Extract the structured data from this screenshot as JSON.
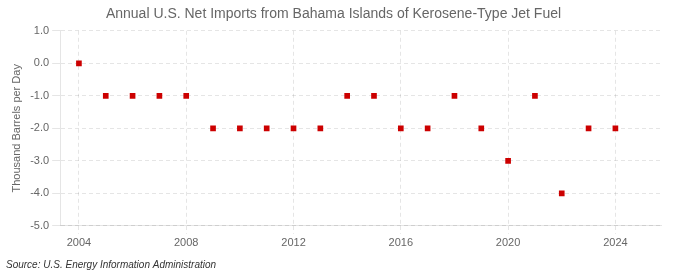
{
  "chart_data": {
    "type": "scatter",
    "title": "Annual U.S. Net Imports from Bahama Islands of Kerosene-Type Jet Fuel",
    "y_label": "Thousand Barrels per Day",
    "annotations": [
      "Source: U.S. Energy Information Administration"
    ],
    "x": [
      2004,
      2005,
      2006,
      2007,
      2008,
      2009,
      2010,
      2011,
      2012,
      2013,
      2014,
      2015,
      2016,
      2017,
      2018,
      2019,
      2020,
      2021,
      2022,
      2023,
      2024
    ],
    "values": [
      0,
      -1,
      -1,
      -1,
      -1,
      -2,
      -2,
      -2,
      -2,
      -2,
      -1,
      -1,
      -2,
      -2,
      -1,
      -2,
      -3,
      -1,
      -4,
      -2,
      -2
    ],
    "color": "#cc0000",
    "marker": "square",
    "xlim": [
      2003.3,
      2025.7
    ],
    "xticks": [
      2004,
      2008,
      2012,
      2016,
      2020,
      2024
    ],
    "ylim": [
      -5.0,
      1.0
    ],
    "yticks": [
      {
        "value": 1.0,
        "label": "1.0"
      },
      {
        "value": 0.0,
        "label": "0.0"
      },
      {
        "value": -1.0,
        "label": "-1.0"
      },
      {
        "value": -2.0,
        "label": "-2.0"
      },
      {
        "value": -3.0,
        "label": "-3.0"
      },
      {
        "value": -4.0,
        "label": "-4.0"
      },
      {
        "value": -5.0,
        "label": "-5.0"
      }
    ],
    "grid": true
  }
}
